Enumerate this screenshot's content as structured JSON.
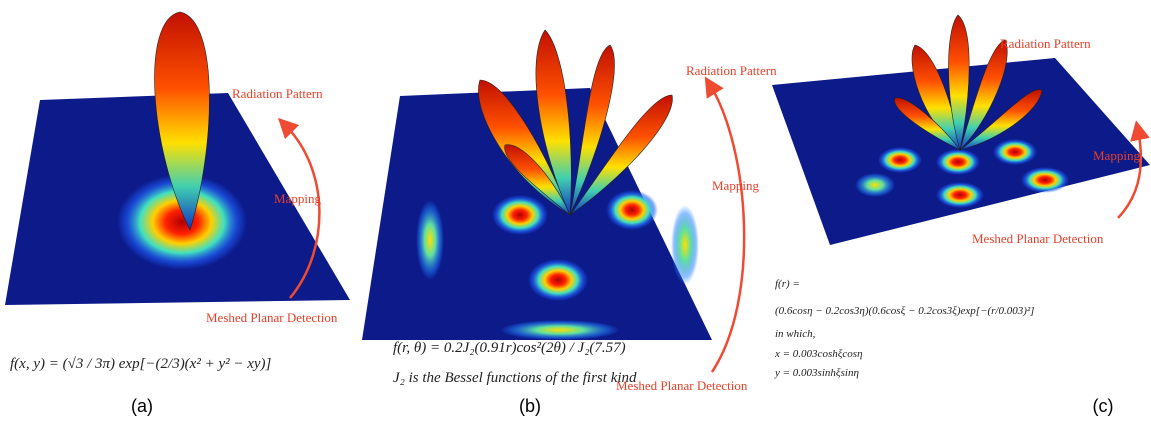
{
  "panels": [
    {
      "caption": "(a)",
      "labels": {
        "top": "Radiation Pattern",
        "middle": "Mapping",
        "bottom": "Meshed Planar Detection"
      },
      "formula": [
        "f(x, y) = (√3 / 3π) exp[−(2/3)(x² + y² − xy)]"
      ]
    },
    {
      "caption": "(b)",
      "labels": {
        "top": "Radiation Pattern",
        "middle": "Mapping",
        "bottom": "Meshed Planar Detection"
      },
      "formula": [
        "f(r, θ) = 0.2J₂(0.91r)cos²(2θ) / J₂(7.57)",
        "J₂ is the Bessel functions of the first kind"
      ]
    },
    {
      "caption": "(c)",
      "labels": {
        "top": "Radiation Pattern",
        "middle": "Mapping",
        "bottom": "Meshed Planar Detection"
      },
      "formula": [
        "f(r) =",
        "(0.6cosη − 0.2cos3η)(0.6cosξ − 0.2cos3ξ)exp[−(r/0.003)²]",
        "in which,",
        "x = 0.003coshξcosη",
        "y = 0.003sinhξsinη"
      ]
    }
  ]
}
